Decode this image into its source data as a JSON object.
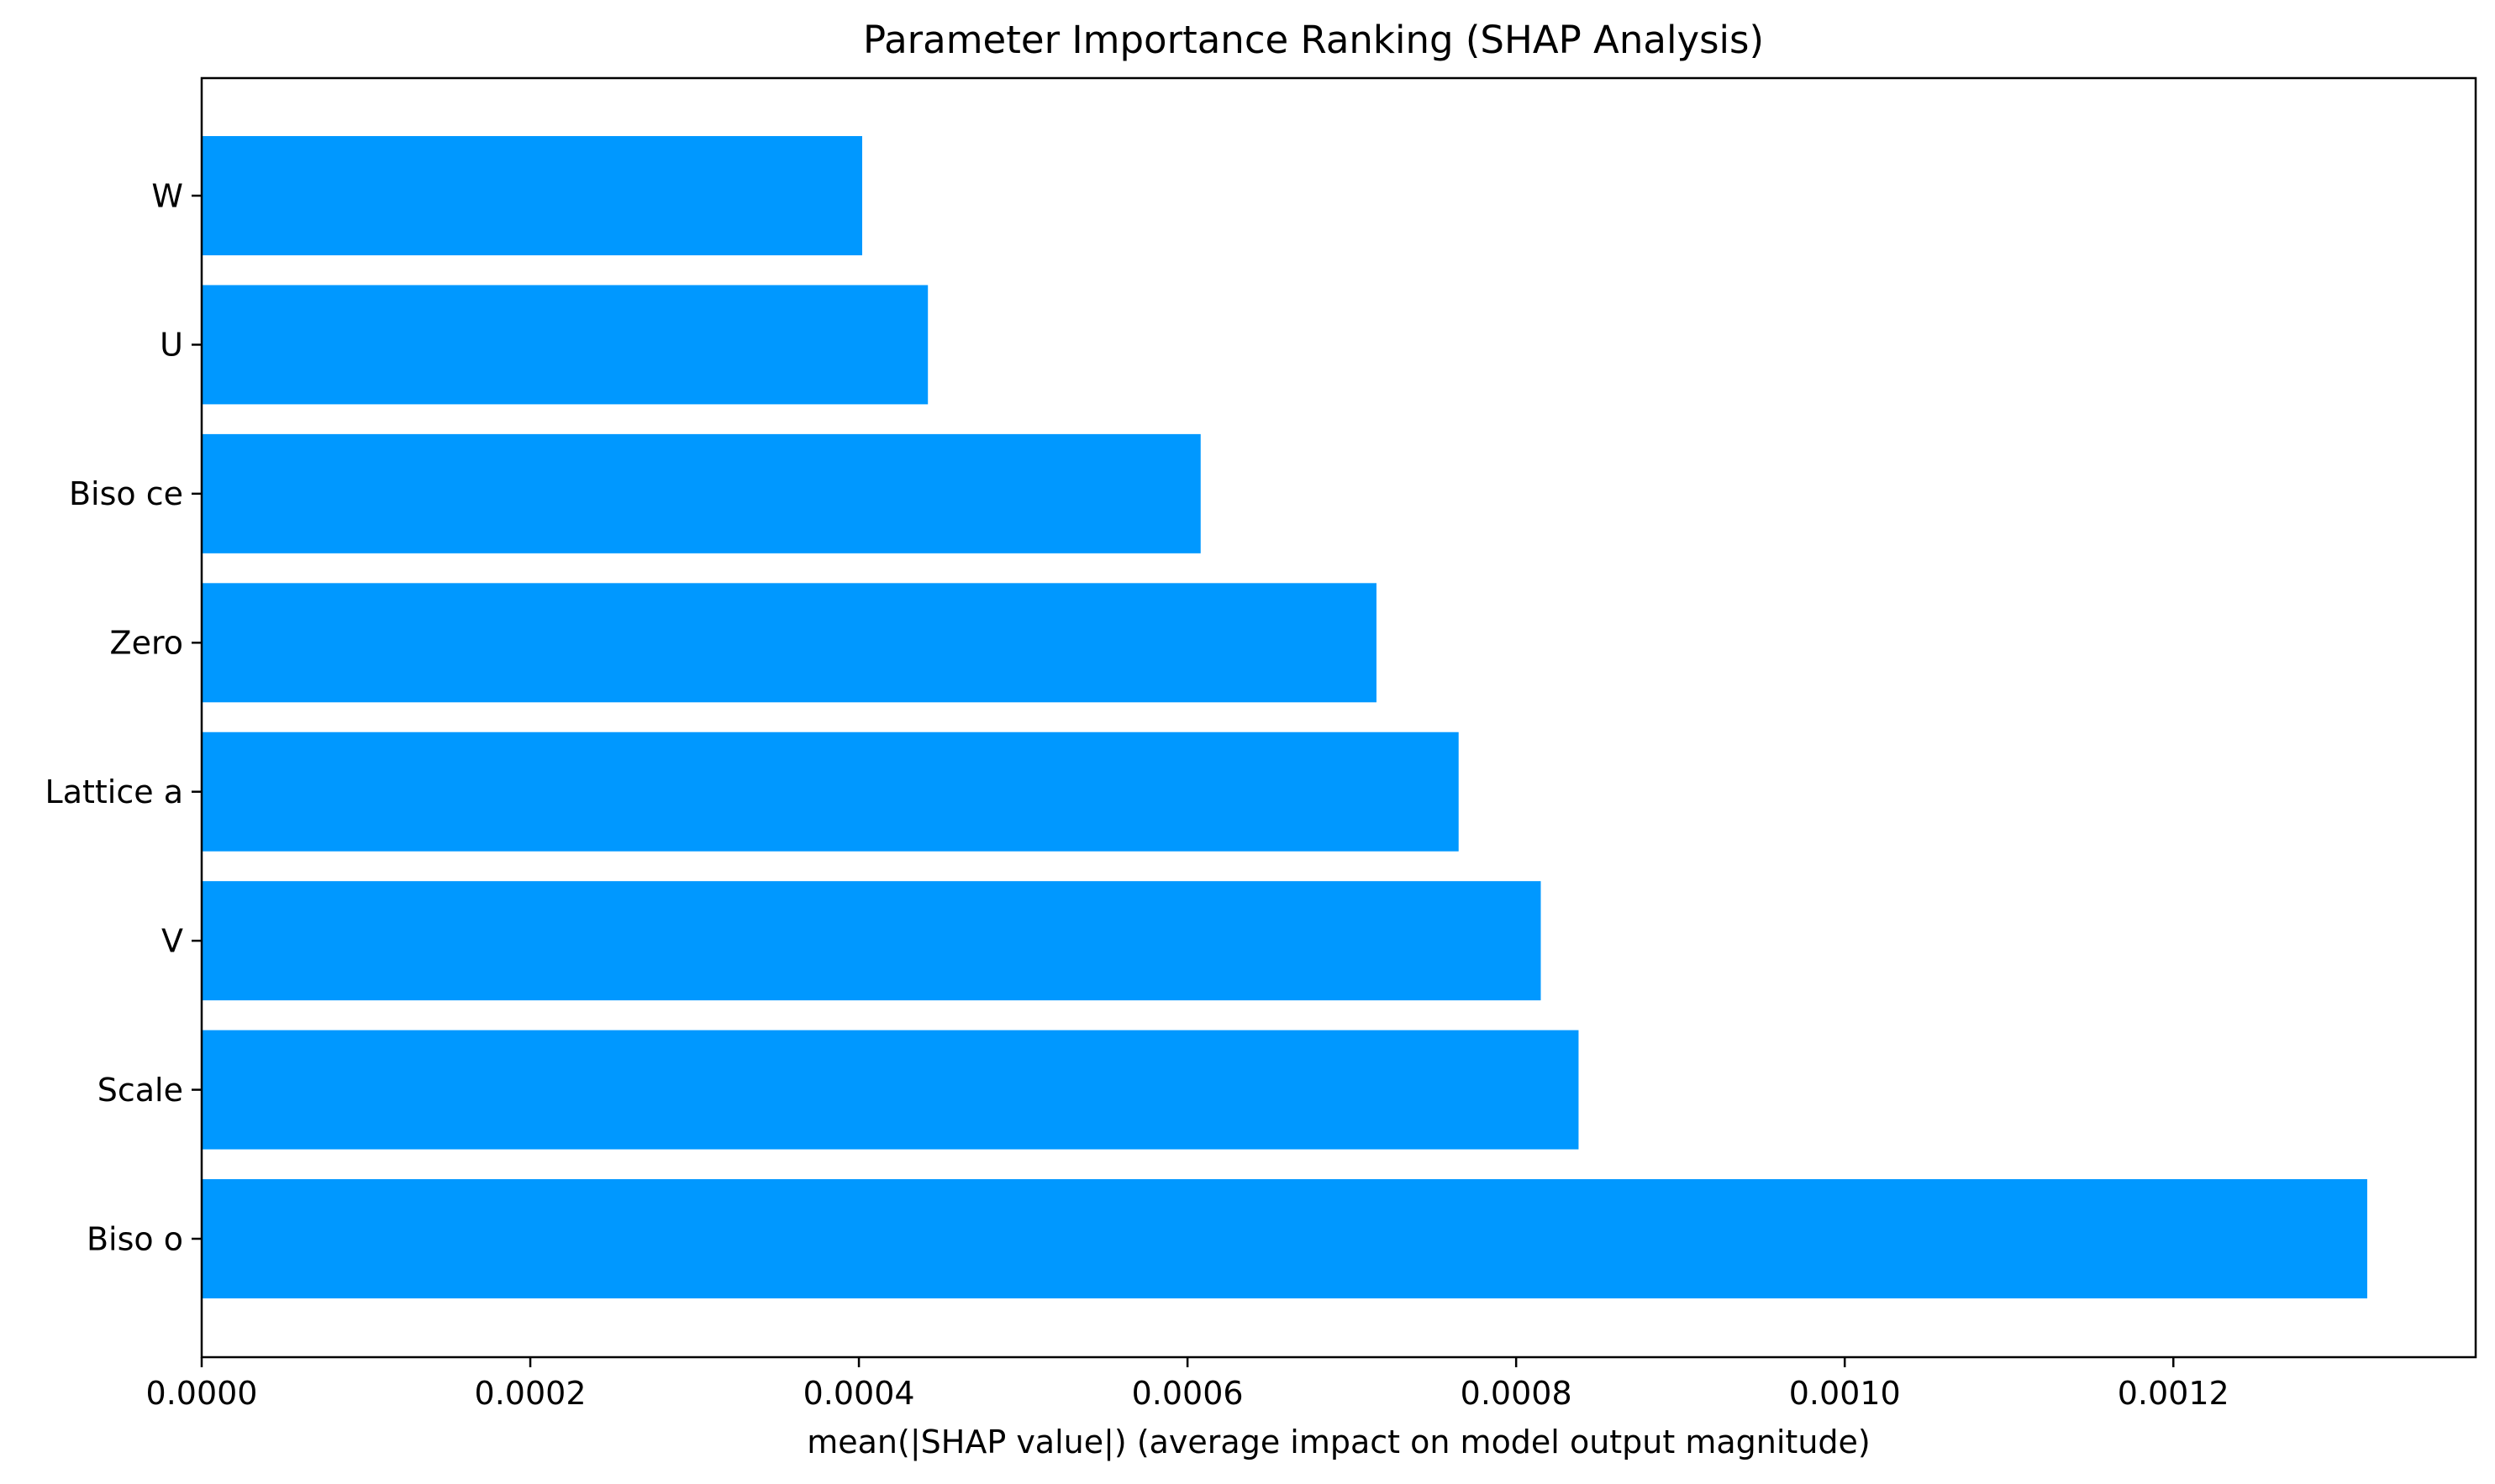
{
  "chart_data": {
    "type": "bar",
    "orientation": "horizontal",
    "title": "Parameter Importance Ranking (SHAP Analysis)",
    "xlabel": "mean(|SHAP value|) (average impact on model output magnitude)",
    "ylabel": "",
    "categories": [
      "Biso o",
      "Scale",
      "V",
      "Lattice a",
      "Zero",
      "Biso ce",
      "U",
      "W"
    ],
    "values": [
      0.001318,
      0.000838,
      0.000815,
      0.000765,
      0.000715,
      0.000608,
      0.000442,
      0.000402
    ],
    "xlim": [
      0,
      0.001384
    ],
    "xticks": [
      "0.0000",
      "0.0002",
      "0.0004",
      "0.0006",
      "0.0008",
      "0.0010",
      "0.0012"
    ],
    "bar_color": "#0098ff",
    "grid": false,
    "legend": "none"
  }
}
